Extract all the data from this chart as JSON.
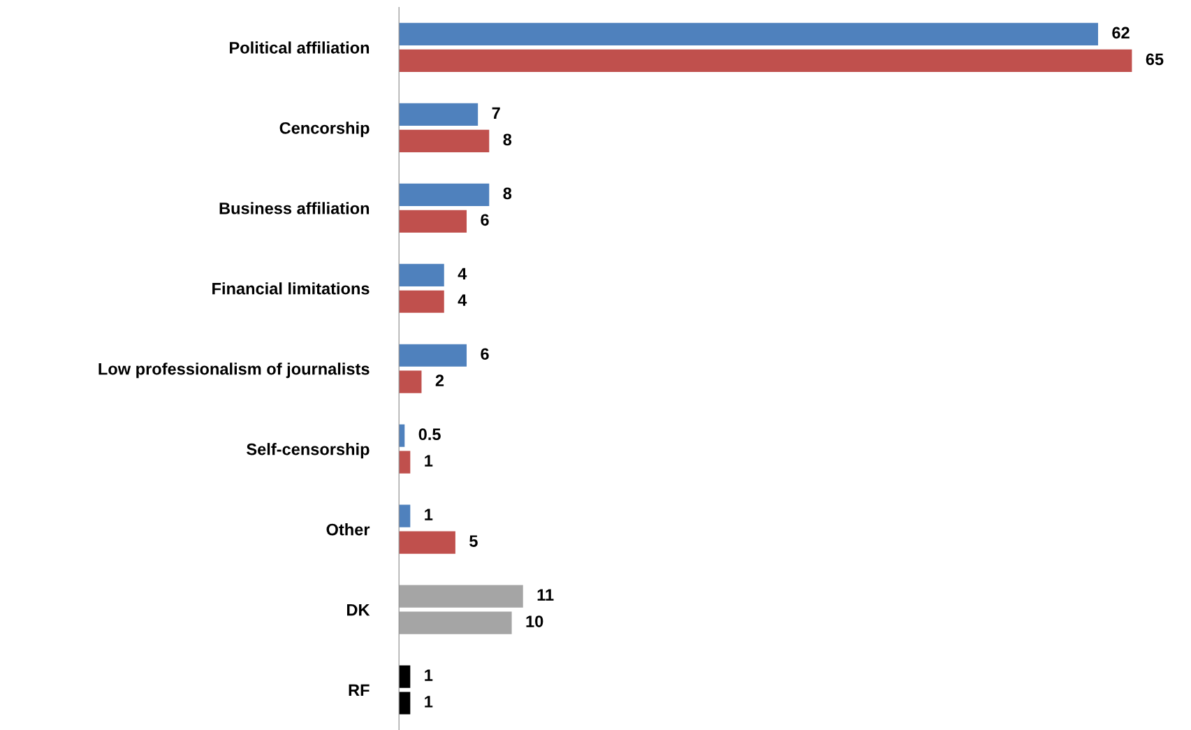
{
  "chart_data": {
    "type": "bar",
    "orientation": "horizontal",
    "data_labels": true,
    "grid": false,
    "legend": false,
    "tick_labels": "y",
    "categories": [
      "Political affiliation",
      "Cencorship",
      "Business affiliation",
      "Financial limitations",
      "Low professionalism of journalists",
      "Self-censorship",
      "Other",
      "DK",
      "RF"
    ],
    "series": [
      {
        "colors": [
          "#4f81bd",
          "#4f81bd",
          "#4f81bd",
          "#4f81bd",
          "#4f81bd",
          "#4f81bd",
          "#4f81bd",
          "#a5a5a5",
          "#000000"
        ],
        "values": [
          62,
          7,
          8,
          4,
          6,
          0.5,
          1,
          11,
          1
        ]
      },
      {
        "colors": [
          "#c0504d",
          "#c0504d",
          "#c0504d",
          "#c0504d",
          "#c0504d",
          "#c0504d",
          "#c0504d",
          "#a5a5a5",
          "#000000"
        ],
        "values": [
          65,
          8,
          6,
          4,
          2,
          1,
          5,
          10,
          1
        ]
      }
    ]
  }
}
